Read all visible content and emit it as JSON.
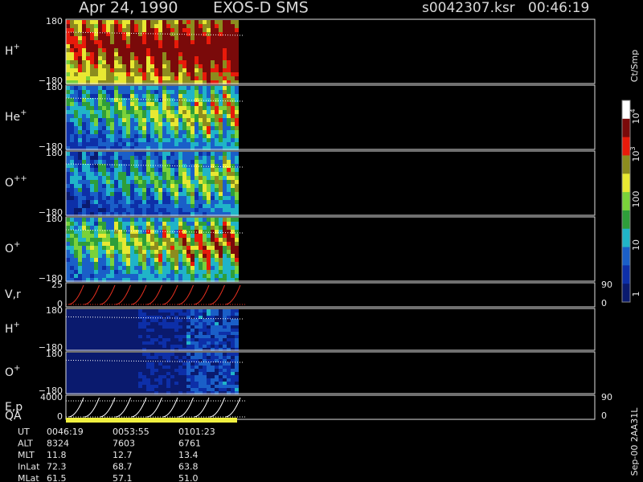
{
  "header": {
    "date": "Apr 24, 1990",
    "instrument": "EXOS-D SMS",
    "file": "s0042307.ksr",
    "time": "00:46:19"
  },
  "panels": [
    {
      "label": "H",
      "sup": "+",
      "top": "180",
      "bottom": "−180"
    },
    {
      "label": "He",
      "sup": "+",
      "top": "180",
      "bottom": "−180"
    },
    {
      "label": "O",
      "sup": "++",
      "top": "180",
      "bottom": "−180"
    },
    {
      "label": "O",
      "sup": "+",
      "top": "180",
      "bottom": "−180"
    },
    {
      "label": "V,r",
      "top": "25",
      "bottom": "0",
      "right_top": "90",
      "right_bottom": "0"
    },
    {
      "label": "H",
      "sup": "+",
      "top": "180",
      "bottom": "−180"
    },
    {
      "label": "O",
      "sup": "+",
      "top": "180",
      "bottom": "−180"
    },
    {
      "label": "E,p",
      "top": "4000",
      "bottom": "0",
      "right_top": "90",
      "right_bottom": "0"
    }
  ],
  "qa_label": "QA",
  "colorbar": {
    "unit": "Ct/Smp",
    "labels": [
      {
        "base": "10",
        "exp": "4"
      },
      {
        "base": "10",
        "exp": "3"
      },
      {
        "base": "100"
      },
      {
        "base": "10"
      },
      {
        "base": "1"
      }
    ]
  },
  "ephemeris": [
    [
      "UT",
      "0046:19",
      "0053:55",
      "0101:23"
    ],
    [
      "ALT",
      "8324",
      "7603",
      "6761"
    ],
    [
      "MLT",
      "11.8",
      "12.7",
      "13.4"
    ],
    [
      "InLat",
      "72.3",
      "68.7",
      "63.8"
    ],
    [
      "MLat",
      "61.5",
      "57.1",
      "51.0"
    ]
  ],
  "footer": "Sep-00  2AA31L"
}
